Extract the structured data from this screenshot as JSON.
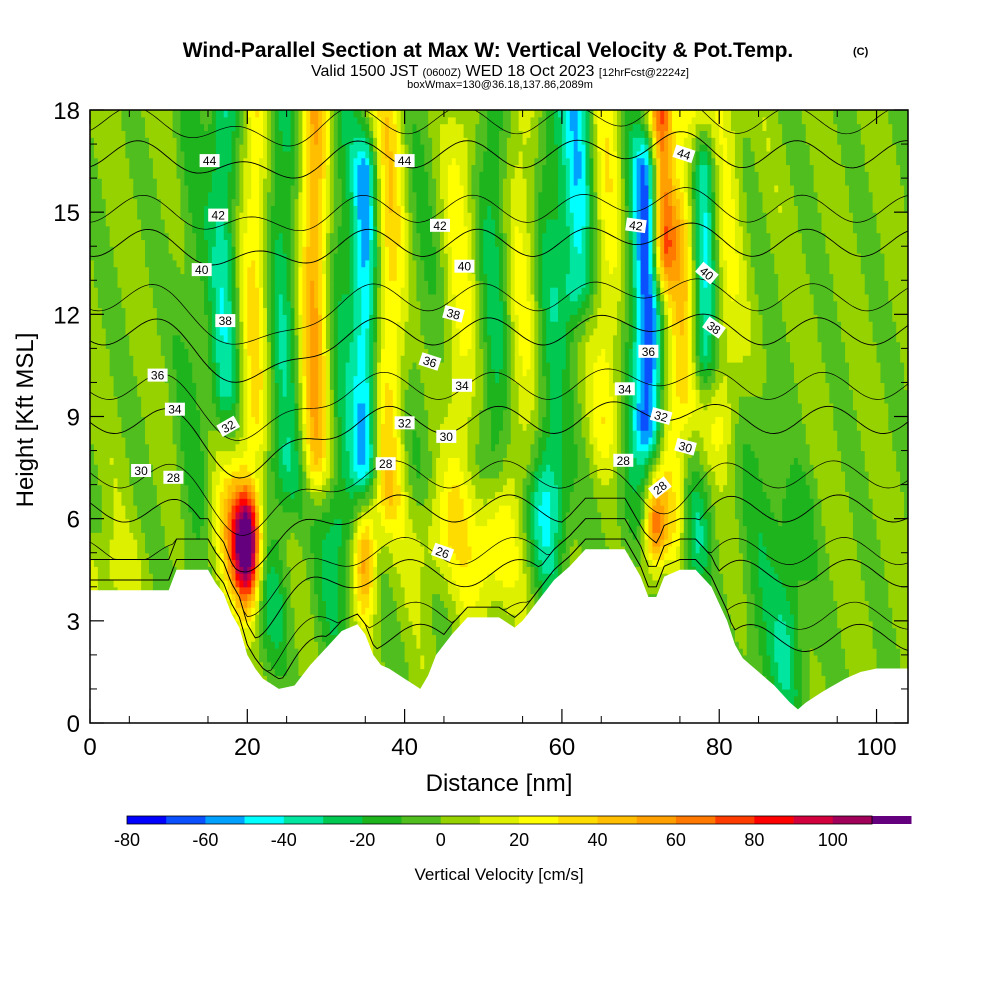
{
  "chart_data": {
    "type": "heatmap",
    "title": "Wind-Parallel Section at Max W: Vertical Velocity & Pot.Temp.",
    "title_suffix": "(C)",
    "subtitle_parts": [
      "Valid 1500 JST ",
      "(0600Z)",
      " WED 18 Oct 2023 ",
      "[12hrFcst@2224z]"
    ],
    "subtitle2": "boxWmax=130@36.18,137.86,2089m",
    "xlabel": "Distance [nm]",
    "ylabel": "Height [Kft MSL]",
    "xlim": [
      0,
      104
    ],
    "ylim": [
      0,
      18
    ],
    "xticks": [
      0,
      20,
      40,
      60,
      80,
      100
    ],
    "yticks": [
      0,
      3,
      6,
      9,
      12,
      15,
      18
    ],
    "colorbar": {
      "label": "Vertical Velocity [cm/s]",
      "min": -80,
      "max": 110,
      "step": 10,
      "tick_values": [
        -80,
        -60,
        -40,
        -20,
        0,
        20,
        40,
        60,
        80,
        100
      ],
      "colors": [
        "#0000ff",
        "#0a50ff",
        "#00a0ff",
        "#00ffff",
        "#00e6a0",
        "#00c850",
        "#1eb41e",
        "#50be1e",
        "#96d200",
        "#dcf000",
        "#ffff00",
        "#ffdc00",
        "#ffbe00",
        "#ffa000",
        "#ff7800",
        "#ff3c00",
        "#ff0000",
        "#d2003c",
        "#a0005a",
        "#64007d"
      ]
    },
    "terrain_height_kft": [
      [
        0,
        3.9
      ],
      [
        10,
        3.9
      ],
      [
        11,
        4.5
      ],
      [
        15,
        4.5
      ],
      [
        16,
        4.1
      ],
      [
        17,
        3.8
      ],
      [
        18,
        3.2
      ],
      [
        19,
        2.8
      ],
      [
        20,
        2.0
      ],
      [
        21,
        1.6
      ],
      [
        22,
        1.3
      ],
      [
        24,
        1.0
      ],
      [
        26,
        1.1
      ],
      [
        28,
        1.7
      ],
      [
        30,
        2.2
      ],
      [
        32,
        2.7
      ],
      [
        34,
        2.9
      ],
      [
        35,
        2.6
      ],
      [
        36,
        2.0
      ],
      [
        37,
        1.7
      ],
      [
        38,
        1.6
      ],
      [
        40,
        1.3
      ],
      [
        42,
        1.0
      ],
      [
        43,
        1.4
      ],
      [
        44,
        2.0
      ],
      [
        46,
        2.6
      ],
      [
        48,
        3.1
      ],
      [
        52,
        3.1
      ],
      [
        54,
        2.8
      ],
      [
        55,
        3.0
      ],
      [
        57,
        3.6
      ],
      [
        59,
        4.2
      ],
      [
        61,
        4.6
      ],
      [
        63,
        5.1
      ],
      [
        68,
        5.1
      ],
      [
        70,
        4.3
      ],
      [
        71,
        3.7
      ],
      [
        72,
        3.7
      ],
      [
        73,
        4.3
      ],
      [
        75,
        4.5
      ],
      [
        77,
        4.5
      ],
      [
        79,
        4.0
      ],
      [
        80,
        3.5
      ],
      [
        81,
        3.0
      ],
      [
        82,
        2.3
      ],
      [
        83,
        1.9
      ],
      [
        85,
        1.5
      ],
      [
        87,
        1.1
      ],
      [
        89,
        0.6
      ],
      [
        90,
        0.4
      ],
      [
        91,
        0.6
      ],
      [
        93,
        0.9
      ],
      [
        96,
        1.3
      ],
      [
        98,
        1.5
      ],
      [
        100,
        1.6
      ],
      [
        104,
        1.6
      ]
    ],
    "theta_contours_c": [
      26,
      28,
      30,
      32,
      34,
      36,
      38,
      40,
      42,
      44
    ],
    "contour_labels": [
      {
        "value": "44",
        "x": 15.2,
        "y": 16.5,
        "angle": 0
      },
      {
        "value": "44",
        "x": 40.0,
        "y": 16.5,
        "angle": 0
      },
      {
        "value": "44",
        "x": 75.5,
        "y": 16.7,
        "angle": 18
      },
      {
        "value": "42",
        "x": 16.3,
        "y": 14.9,
        "angle": 0
      },
      {
        "value": "42",
        "x": 44.5,
        "y": 14.6,
        "angle": 0
      },
      {
        "value": "42",
        "x": 69.4,
        "y": 14.6,
        "angle": 8
      },
      {
        "value": "40",
        "x": 14.2,
        "y": 13.3,
        "angle": 0
      },
      {
        "value": "40",
        "x": 47.6,
        "y": 13.4,
        "angle": 0
      },
      {
        "value": "40",
        "x": 78.4,
        "y": 13.2,
        "angle": 40
      },
      {
        "value": "38",
        "x": 17.2,
        "y": 11.8,
        "angle": 0
      },
      {
        "value": "38",
        "x": 46.2,
        "y": 12.0,
        "angle": 15
      },
      {
        "value": "38",
        "x": 79.3,
        "y": 11.6,
        "angle": 35
      },
      {
        "value": "36",
        "x": 8.6,
        "y": 10.2,
        "angle": 0
      },
      {
        "value": "36",
        "x": 43.2,
        "y": 10.6,
        "angle": 18
      },
      {
        "value": "36",
        "x": 71.0,
        "y": 10.9,
        "angle": 0
      },
      {
        "value": "34",
        "x": 10.8,
        "y": 9.2,
        "angle": 0
      },
      {
        "value": "34",
        "x": 47.3,
        "y": 9.9,
        "angle": 0
      },
      {
        "value": "34",
        "x": 68.0,
        "y": 9.8,
        "angle": 0
      },
      {
        "value": "32",
        "x": 17.6,
        "y": 8.7,
        "angle": -30
      },
      {
        "value": "32",
        "x": 40.0,
        "y": 8.8,
        "angle": 0
      },
      {
        "value": "32",
        "x": 72.6,
        "y": 9.0,
        "angle": 15
      },
      {
        "value": "30",
        "x": 6.5,
        "y": 7.4,
        "angle": 0
      },
      {
        "value": "30",
        "x": 45.3,
        "y": 8.4,
        "angle": 0
      },
      {
        "value": "30",
        "x": 75.7,
        "y": 8.1,
        "angle": 15
      },
      {
        "value": "28",
        "x": 10.6,
        "y": 7.2,
        "angle": 0
      },
      {
        "value": "28",
        "x": 37.6,
        "y": 7.6,
        "angle": 0
      },
      {
        "value": "28",
        "x": 67.8,
        "y": 7.7,
        "angle": 0
      },
      {
        "value": "28",
        "x": 72.5,
        "y": 6.9,
        "angle": -38
      },
      {
        "value": "26",
        "x": 44.8,
        "y": 5.0,
        "angle": 20
      }
    ],
    "updraft_cores": [
      {
        "x": 20,
        "z": 5.5,
        "w_cm_s": 110
      },
      {
        "x": 28.5,
        "z": 16.5,
        "w_cm_s": 60
      },
      {
        "x": 72.5,
        "z": 17.0,
        "w_cm_s": 70
      },
      {
        "x": 71.5,
        "z": 5.6,
        "w_cm_s": 60
      },
      {
        "x": 35,
        "z": 4.8,
        "w_cm_s": 50
      }
    ],
    "downdraft_cores": [
      {
        "x": 71,
        "z": 12.5,
        "w_cm_s": -70
      },
      {
        "x": 35.5,
        "z": 12.0,
        "w_cm_s": -45
      },
      {
        "x": 62,
        "z": 16.5,
        "w_cm_s": -40
      },
      {
        "x": 78,
        "z": 14.0,
        "w_cm_s": -45
      }
    ]
  }
}
